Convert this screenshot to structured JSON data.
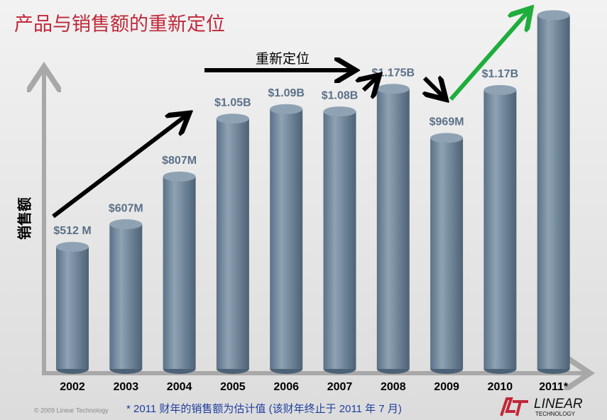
{
  "chart_data": {
    "type": "bar",
    "title": "产品与销售额的重新定位",
    "y_label": "销售额",
    "annotation": "重新定位",
    "footnote": "*  2011 财年的销售额为估计值 (该财年终止于 2011 年 7 月)",
    "copyright": "© 2009 Linear Technology",
    "logo": [
      "LINEAR",
      "TECHNOLOGY"
    ],
    "categories": [
      "2002",
      "2003",
      "2004",
      "2005",
      "2006",
      "2007",
      "2008",
      "2009",
      "2010",
      "2011*"
    ],
    "values": [
      512,
      607,
      807,
      1050,
      1090,
      1080,
      1175,
      969,
      1170,
      1484
    ],
    "value_labels": [
      "$512 M",
      "$607M",
      "$807M",
      "$1.05B",
      "$1.09B",
      "$1.08B",
      "$1.175B",
      "$969M",
      "$1.17B",
      null
    ],
    "color": "#6e8599",
    "ylim": [
      0,
      1500
    ]
  }
}
